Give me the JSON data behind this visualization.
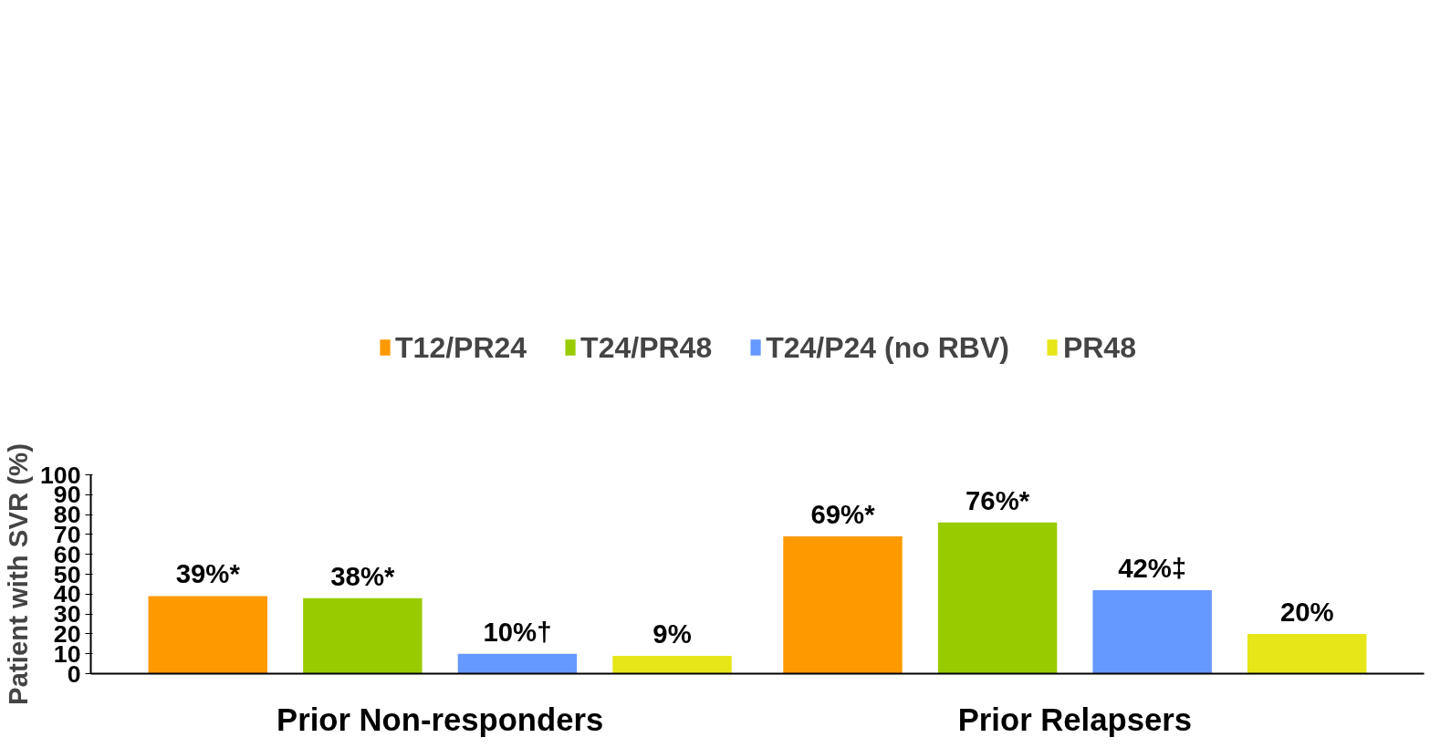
{
  "chart_data": {
    "type": "bar",
    "ylabel": "Patient with SVR (%)",
    "categories": [
      "Prior Non-responders",
      "Prior Relapsers"
    ],
    "series": [
      {
        "name": "T12/PR24",
        "color": "#ff9900",
        "values": [
          39,
          69
        ],
        "value_labels": [
          "39%*",
          "69%*"
        ]
      },
      {
        "name": "T24/PR48",
        "color": "#99cc00",
        "values": [
          38,
          76
        ],
        "value_labels": [
          "38%*",
          "76%*"
        ]
      },
      {
        "name": "T24/P24 (no RBV)",
        "color": "#6699ff",
        "values": [
          10,
          42
        ],
        "value_labels": [
          "10%†",
          "42%‡"
        ]
      },
      {
        "name": "PR48",
        "color": "#e6e619",
        "values": [
          9,
          20
        ],
        "value_labels": [
          "9%",
          "20%"
        ]
      }
    ],
    "ylim": [
      0,
      100
    ],
    "yticks": [
      0,
      10,
      20,
      30,
      40,
      50,
      60,
      70,
      80,
      90,
      100
    ],
    "grid": false,
    "legend": "top"
  }
}
